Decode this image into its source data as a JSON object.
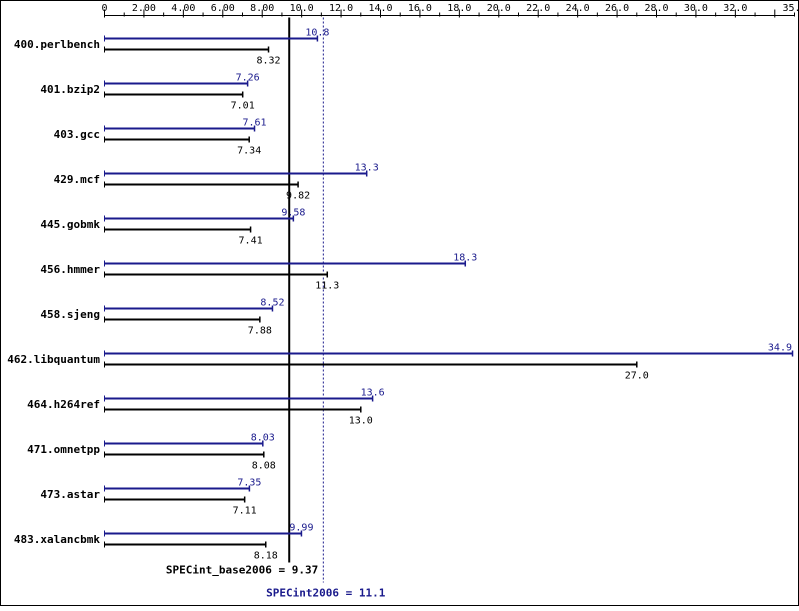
{
  "chart_data": {
    "type": "bar",
    "orientation": "horizontal",
    "axis": {
      "min": 0,
      "max": 35,
      "major_step": 2,
      "tick_labels": [
        "0",
        "2.00",
        "4.00",
        "6.00",
        "8.00",
        "10.0",
        "12.0",
        "14.0",
        "16.0",
        "18.0",
        "20.0",
        "22.0",
        "24.0",
        "26.0",
        "28.0",
        "30.0",
        "32.0",
        "35.0"
      ],
      "tick_values": [
        0,
        2,
        4,
        6,
        8,
        10,
        12,
        14,
        16,
        18,
        20,
        22,
        24,
        26,
        28,
        30,
        32,
        35
      ]
    },
    "categories": [
      "400.perlbench",
      "401.bzip2",
      "403.gcc",
      "429.mcf",
      "445.gobmk",
      "456.hmmer",
      "458.sjeng",
      "462.libquantum",
      "464.h264ref",
      "471.omnetpp",
      "473.astar",
      "483.xalancbmk"
    ],
    "series": [
      {
        "values": [
          10.8,
          7.26,
          7.61,
          13.3,
          9.58,
          18.3,
          8.52,
          34.9,
          13.6,
          8.03,
          7.35,
          9.99
        ],
        "labels": [
          "10.8",
          "7.26",
          "7.61",
          "13.3",
          "9.58",
          "18.3",
          "8.52",
          "34.9",
          "13.6",
          "8.03",
          "7.35",
          "9.99"
        ],
        "color": "#1a1a8c"
      },
      {
        "values": [
          8.32,
          7.01,
          7.34,
          9.82,
          7.41,
          11.3,
          7.88,
          27.0,
          13.0,
          8.08,
          7.11,
          8.18
        ],
        "labels": [
          "8.32",
          "7.01",
          "7.34",
          "9.82",
          "7.41",
          "11.3",
          "7.88",
          "27.0",
          "13.0",
          "8.08",
          "7.11",
          "8.18"
        ],
        "color": "#000000"
      }
    ],
    "reference_lines": [
      {
        "label": "SPECint_base2006 = 9.37",
        "value": 9.37,
        "style": "solid",
        "color": "#000000"
      },
      {
        "label": "SPECint2006 = 11.1",
        "value": 11.1,
        "style": "dotted",
        "color": "#1a1a8c"
      }
    ]
  }
}
